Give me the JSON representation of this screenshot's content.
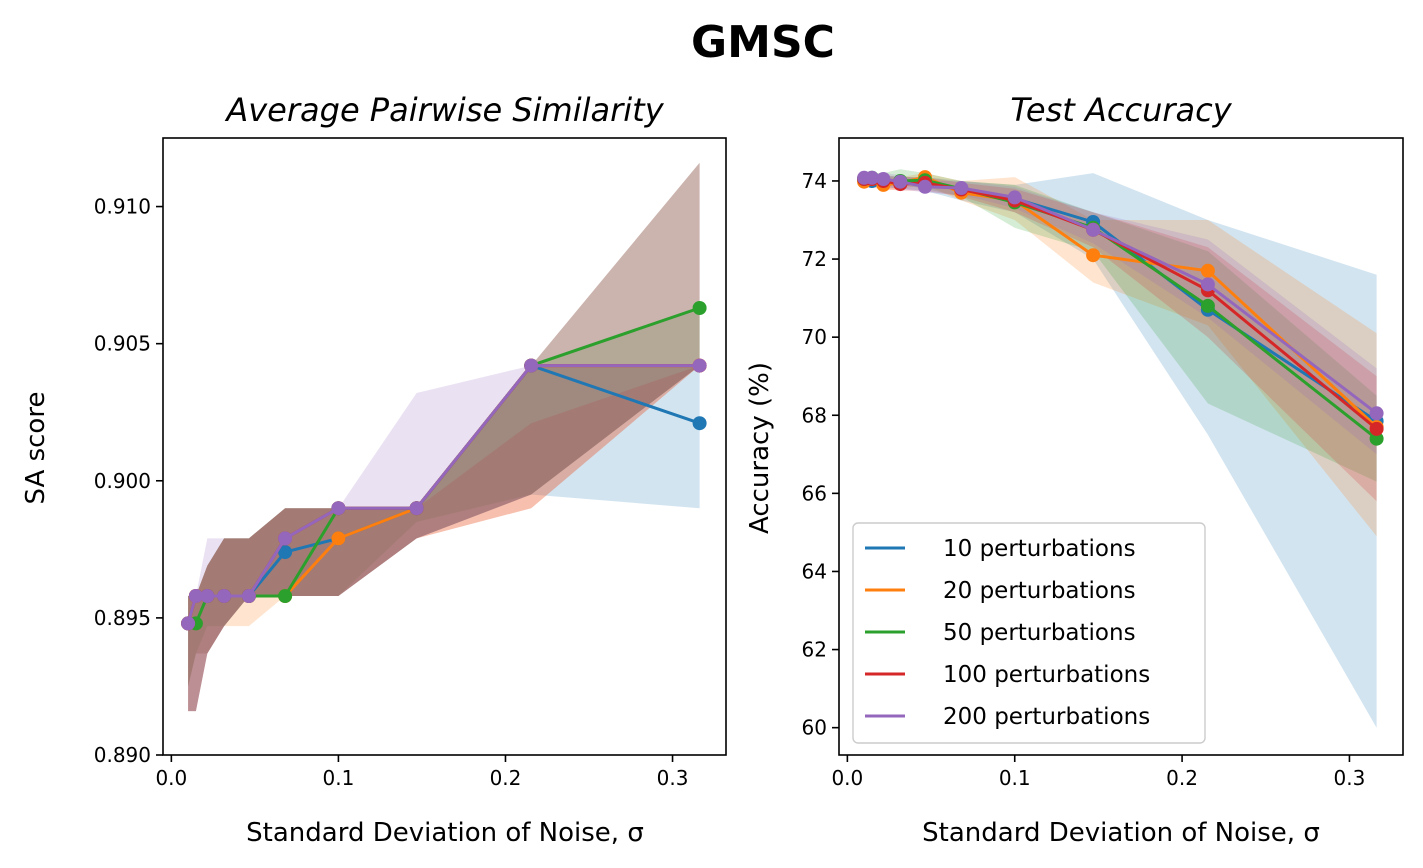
{
  "figure_title": "GMSC",
  "chart_data": [
    {
      "type": "line",
      "title": "Average Pairwise Similarity",
      "xlabel": "Standard Deviation of Noise, σ",
      "ylabel": "SA score",
      "xlim": [
        -0.005,
        0.332
      ],
      "ylim": [
        0.89,
        0.9125
      ],
      "xticks": [
        0.0,
        0.1,
        0.2,
        0.3
      ],
      "xtick_labels": [
        "0.0",
        "0.1",
        "0.2",
        "0.3"
      ],
      "yticks": [
        0.89,
        0.895,
        0.9,
        0.905,
        0.91
      ],
      "ytick_labels": [
        "0.890",
        "0.895",
        "0.900",
        "0.905",
        "0.910"
      ],
      "grid": false,
      "legend": null,
      "bands_shown": true,
      "series": [
        {
          "name": "10 perturbations",
          "color": "#1f77b4",
          "x": [
            0.01,
            0.0147,
            0.0215,
            0.0316,
            0.0464,
            0.0681,
            0.1,
            0.1468,
            0.2154,
            0.3162
          ],
          "y": [
            0.8948,
            0.8958,
            0.8958,
            0.8958,
            0.8958,
            0.8974,
            0.8979,
            0.899,
            0.9042,
            0.9021
          ],
          "band_low": [
            0.8925,
            0.8937,
            0.8937,
            0.8947,
            0.8958,
            0.8958,
            0.8958,
            0.8979,
            0.8995,
            0.899
          ],
          "band_high": [
            0.8958,
            0.8958,
            0.8969,
            0.8979,
            0.8979,
            0.899,
            0.899,
            0.899,
            0.9042,
            0.9042
          ]
        },
        {
          "name": "20 perturbations",
          "color": "#ff7f0e",
          "x": [
            0.01,
            0.0147,
            0.0215,
            0.0316,
            0.0464,
            0.0681,
            0.1,
            0.1468,
            0.2154,
            0.3162
          ],
          "y": [
            0.8948,
            0.8958,
            0.8958,
            0.8958,
            0.8958,
            0.8958,
            0.8979,
            0.899,
            0.9042,
            0.9042
          ],
          "band_low": [
            0.8925,
            0.8937,
            0.8937,
            0.8947,
            0.8947,
            0.8958,
            0.8958,
            0.8979,
            0.899,
            0.9042
          ],
          "band_high": [
            0.8958,
            0.8958,
            0.8969,
            0.8979,
            0.8979,
            0.899,
            0.899,
            0.899,
            0.9042,
            0.9042
          ]
        },
        {
          "name": "50 perturbations",
          "color": "#2ca02c",
          "x": [
            0.01,
            0.0147,
            0.0215,
            0.0316,
            0.0464,
            0.0681,
            0.1,
            0.1468,
            0.2154,
            0.3162
          ],
          "y": [
            0.8948,
            0.8948,
            0.8958,
            0.8958,
            0.8958,
            0.8958,
            0.899,
            0.899,
            0.9042,
            0.9063
          ],
          "band_low": [
            0.8925,
            0.8937,
            0.8947,
            0.8947,
            0.8958,
            0.8958,
            0.8958,
            0.8985,
            0.8995,
            0.9042
          ],
          "band_high": [
            0.8958,
            0.8958,
            0.8969,
            0.8979,
            0.8979,
            0.899,
            0.899,
            0.899,
            0.9042,
            0.9063
          ]
        },
        {
          "name": "100 perturbations",
          "color": "#d62728",
          "x": [
            0.01,
            0.0147,
            0.0215,
            0.0316,
            0.0464,
            0.0681,
            0.1,
            0.1468,
            0.2154,
            0.3162
          ],
          "y": [
            0.8948,
            0.8958,
            0.8958,
            0.8958,
            0.8958,
            0.8979,
            0.899,
            0.899,
            0.9042,
            0.9042
          ],
          "band_low": [
            0.8916,
            0.8916,
            0.8937,
            0.8947,
            0.8958,
            0.8958,
            0.8958,
            0.8979,
            0.899,
            0.9042
          ],
          "band_high": [
            0.8958,
            0.8958,
            0.8969,
            0.8979,
            0.8979,
            0.899,
            0.899,
            0.899,
            0.9021,
            0.9042
          ]
        },
        {
          "name": "200 perturbations",
          "color": "#9467bd",
          "x": [
            0.01,
            0.0147,
            0.0215,
            0.0316,
            0.0464,
            0.0681,
            0.1,
            0.1468,
            0.2154,
            0.3162
          ],
          "y": [
            0.8948,
            0.8958,
            0.8958,
            0.8958,
            0.8958,
            0.8979,
            0.899,
            0.899,
            0.9042,
            0.9042
          ],
          "band_low": [
            0.8916,
            0.8916,
            0.8937,
            0.8947,
            0.8958,
            0.8958,
            0.8958,
            0.8979,
            0.8995,
            0.9042
          ],
          "band_high": [
            0.8958,
            0.8958,
            0.8979,
            0.8979,
            0.8979,
            0.899,
            0.899,
            0.9032,
            0.9042,
            0.9042
          ]
        }
      ],
      "combined_band": {
        "x": [
          0.01,
          0.0147,
          0.0215,
          0.0316,
          0.0464,
          0.0681,
          0.1,
          0.1468,
          0.2154,
          0.3162
        ],
        "low": [
          0.8916,
          0.8916,
          0.8937,
          0.8947,
          0.8958,
          0.8958,
          0.8958,
          0.8979,
          0.8995,
          0.9042
        ],
        "high": [
          0.8958,
          0.8958,
          0.8969,
          0.8979,
          0.8979,
          0.899,
          0.899,
          0.899,
          0.9042,
          0.9116
        ],
        "color": "#8c564b"
      }
    },
    {
      "type": "line",
      "title": "Test Accuracy",
      "xlabel": "Standard Deviation of Noise, σ",
      "ylabel": "Accuracy (%)",
      "xlim": [
        -0.005,
        0.332
      ],
      "ylim": [
        59.3,
        75.1
      ],
      "xticks": [
        0.0,
        0.1,
        0.2,
        0.3
      ],
      "xtick_labels": [
        "0.0",
        "0.1",
        "0.2",
        "0.3"
      ],
      "yticks": [
        60,
        62,
        64,
        66,
        68,
        70,
        72,
        74
      ],
      "ytick_labels": [
        "60",
        "62",
        "64",
        "66",
        "68",
        "70",
        "72",
        "74"
      ],
      "grid": false,
      "legend": "lower-left",
      "bands_shown": true,
      "series": [
        {
          "name": "10 perturbations",
          "color": "#1f77b4",
          "x": [
            0.01,
            0.0147,
            0.0215,
            0.0316,
            0.0464,
            0.0681,
            0.1,
            0.1468,
            0.2154,
            0.3162
          ],
          "y": [
            74.05,
            74.0,
            74.0,
            73.98,
            73.95,
            73.8,
            73.55,
            72.95,
            70.7,
            67.85
          ],
          "band_low": [
            73.9,
            73.9,
            73.85,
            73.8,
            73.75,
            73.5,
            73.2,
            72.0,
            67.5,
            60.0
          ],
          "band_high": [
            74.2,
            74.15,
            74.15,
            74.1,
            74.1,
            74.0,
            73.9,
            74.2,
            73.0,
            71.6
          ]
        },
        {
          "name": "20 perturbations",
          "color": "#ff7f0e",
          "x": [
            0.01,
            0.0147,
            0.0215,
            0.0316,
            0.0464,
            0.0681,
            0.1,
            0.1468,
            0.2154,
            0.3162
          ],
          "y": [
            73.98,
            74.05,
            73.9,
            73.95,
            74.1,
            73.7,
            73.5,
            72.1,
            71.7,
            67.7
          ],
          "band_low": [
            73.8,
            73.85,
            73.75,
            73.8,
            73.9,
            73.5,
            73.0,
            71.4,
            70.3,
            64.9
          ],
          "band_high": [
            74.2,
            74.2,
            74.1,
            74.1,
            74.2,
            74.0,
            74.1,
            73.0,
            73.0,
            70.1
          ]
        },
        {
          "name": "50 perturbations",
          "color": "#2ca02c",
          "x": [
            0.01,
            0.0147,
            0.0215,
            0.0316,
            0.0464,
            0.0681,
            0.1,
            0.1468,
            0.2154,
            0.3162
          ],
          "y": [
            74.05,
            74.08,
            74.02,
            74.0,
            74.02,
            73.8,
            73.45,
            72.8,
            70.8,
            67.4
          ],
          "band_low": [
            73.85,
            73.9,
            73.85,
            73.9,
            73.8,
            73.6,
            72.8,
            72.2,
            68.3,
            66.3
          ],
          "band_high": [
            74.2,
            74.2,
            74.2,
            74.3,
            74.2,
            74.0,
            73.9,
            73.2,
            72.2,
            68.5
          ]
        },
        {
          "name": "100 perturbations",
          "color": "#d62728",
          "x": [
            0.01,
            0.0147,
            0.0215,
            0.0316,
            0.0464,
            0.0681,
            0.1,
            0.1468,
            0.2154,
            0.3162
          ],
          "y": [
            74.05,
            74.05,
            74.0,
            73.92,
            73.95,
            73.78,
            73.5,
            72.75,
            71.2,
            67.65
          ],
          "band_low": [
            73.85,
            73.85,
            73.8,
            73.75,
            73.75,
            73.6,
            73.2,
            72.3,
            70.0,
            65.8
          ],
          "band_high": [
            74.2,
            74.2,
            74.15,
            74.1,
            74.1,
            73.95,
            73.8,
            73.2,
            72.3,
            69.0
          ]
        },
        {
          "name": "200 perturbations",
          "color": "#9467bd",
          "x": [
            0.01,
            0.0147,
            0.0215,
            0.0316,
            0.0464,
            0.0681,
            0.1,
            0.1468,
            0.2154,
            0.3162
          ],
          "y": [
            74.08,
            74.08,
            74.05,
            73.98,
            73.85,
            73.82,
            73.58,
            72.75,
            71.35,
            68.05
          ],
          "band_low": [
            73.9,
            73.9,
            73.85,
            73.8,
            73.7,
            73.65,
            73.3,
            72.4,
            70.5,
            67.0
          ],
          "band_high": [
            74.2,
            74.2,
            74.2,
            74.15,
            74.0,
            74.0,
            73.85,
            73.2,
            72.5,
            69.2
          ]
        }
      ]
    }
  ]
}
